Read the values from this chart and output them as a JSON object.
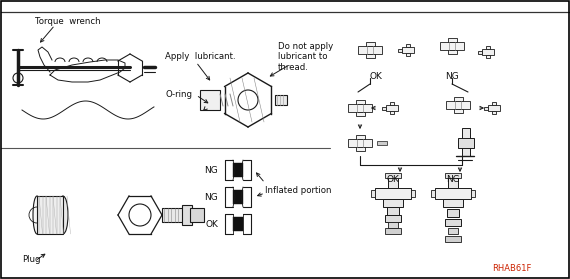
{
  "bg_color": "#ffffff",
  "border_color": "#000000",
  "fig_width": 5.7,
  "fig_height": 2.79,
  "dpi": 100,
  "gc": "#1a1a1a",
  "labels": {
    "torque_wrench": "Torque  wrench",
    "apply_lubricant": "Apply  lubricant.",
    "o_ring": "O-ring",
    "do_not_apply": "Do not apply\nlubricant to\nthread.",
    "plug": "Plug",
    "inflated": "Inflated portion",
    "ref_code": "RHAB61F"
  },
  "ref_color": "#cc2200"
}
